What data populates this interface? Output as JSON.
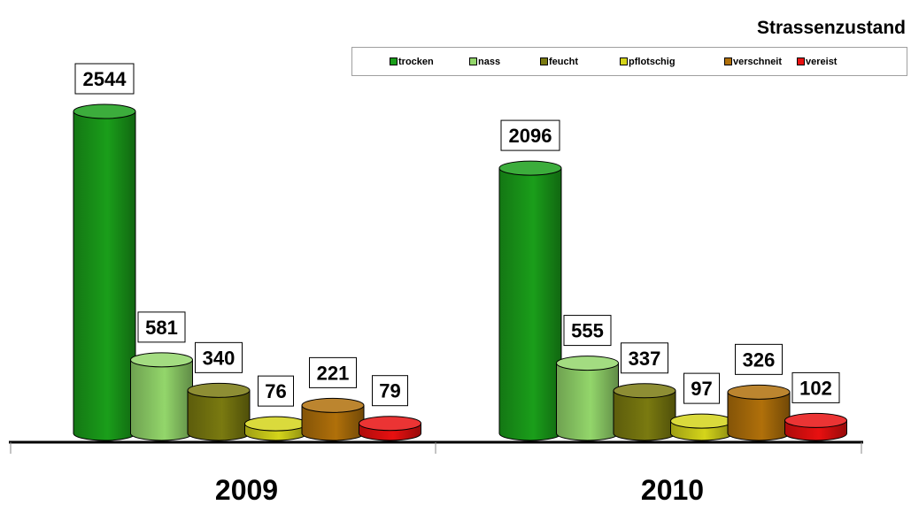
{
  "chart_data": {
    "type": "bar",
    "title": "Strassenzustand",
    "categories": [
      "2009",
      "2010"
    ],
    "series": [
      {
        "name": "trocken",
        "color": "#1a9e1a",
        "values": [
          2544,
          2096
        ]
      },
      {
        "name": "nass",
        "color": "#93d66b",
        "values": [
          581,
          555
        ]
      },
      {
        "name": "feucht",
        "color": "#7a7a10",
        "values": [
          340,
          337
        ]
      },
      {
        "name": "pflotschig",
        "color": "#d4d41a",
        "values": [
          76,
          97
        ]
      },
      {
        "name": "verschneit",
        "color": "#b0700a",
        "values": [
          221,
          326
        ]
      },
      {
        "name": "vereist",
        "color": "#e81010",
        "values": [
          79,
          102
        ]
      }
    ],
    "ylim": [
      0,
      2600
    ],
    "legend_position": "top-right",
    "grid": false
  }
}
